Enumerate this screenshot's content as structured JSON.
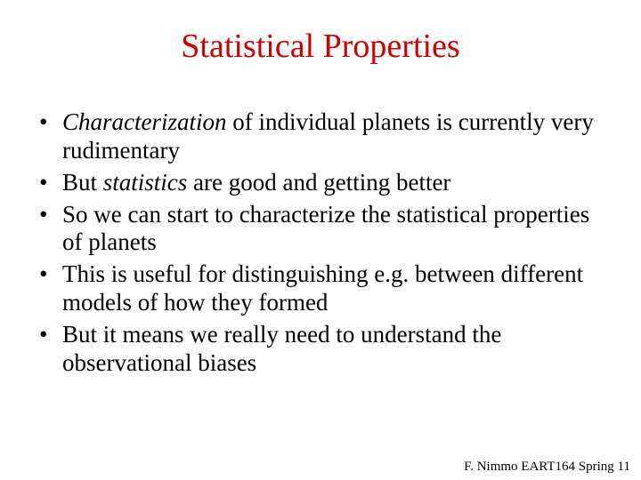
{
  "colors": {
    "title": "#cc0000",
    "text": "#000000",
    "background": "#ffffff"
  },
  "typography": {
    "family": "Times New Roman",
    "title_size_pt": 38,
    "body_size_pt": 27,
    "footer_size_pt": 15
  },
  "title": "Statistical Properties",
  "bullets": [
    {
      "lead_italic": "Characterization",
      "rest": " of individual planets is currently very rudimentary"
    },
    {
      "pre": "But ",
      "mid_italic": "statistics",
      "rest": " are good and getting better"
    },
    {
      "text": "So we can start to characterize the statistical properties of planets"
    },
    {
      "text": "This is useful for distinguishing e.g. between different models of how they formed"
    },
    {
      "text": "But it means we really need to understand the observational biases"
    }
  ],
  "footer": "F. Nimmo EART164 Spring 11"
}
